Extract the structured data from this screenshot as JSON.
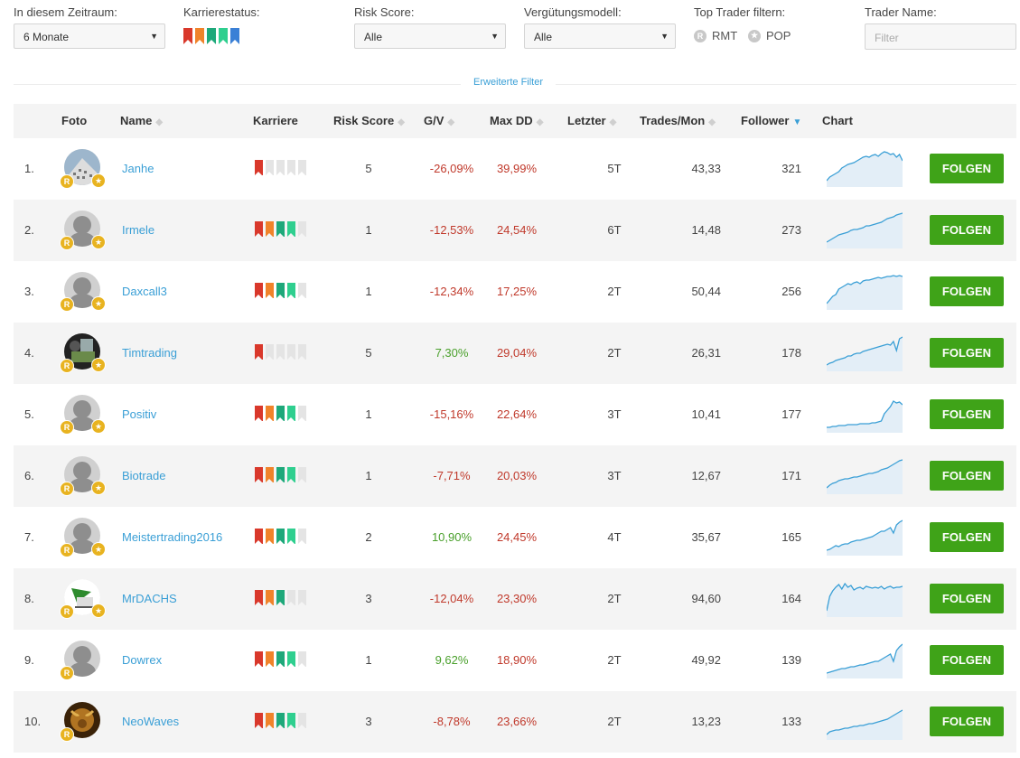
{
  "filters": {
    "zeitraum_label": "In diesem Zeitraum:",
    "zeitraum_value": "6 Monate",
    "karriere_label": "Karrierestatus:",
    "risk_label": "Risk Score:",
    "risk_value": "Alle",
    "verguetung_label": "Vergütungsmodell:",
    "verguetung_value": "Alle",
    "toptrader_label": "Top Trader filtern:",
    "rmt_label": "RMT",
    "pop_label": "POP",
    "tradername_label": "Trader Name:",
    "tradername_placeholder": "Filter",
    "erweiterte": "Erweiterte Filter"
  },
  "career_colors": [
    "#d9382b",
    "#f0832a",
    "#1ea87a",
    "#2fcf8f",
    "#3a80d6"
  ],
  "empty_flag_color": "#e4e4e4",
  "table": {
    "headers": {
      "foto": "Foto",
      "name": "Name",
      "karriere": "Karriere",
      "risk": "Risk Score",
      "gv": "G/V",
      "maxdd": "Max DD",
      "letzter": "Letzter",
      "trades": "Trades/Mon",
      "follower": "Follower",
      "chart": "Chart"
    },
    "follow_label": "FOLGEN",
    "rows": [
      {
        "rank": "1.",
        "name": "Janhe",
        "career": 1,
        "risk": "5",
        "gv": "-26,09%",
        "gv_sign": "neg",
        "maxdd": "39,99%",
        "letzter": "5T",
        "trades": "43,33",
        "follower": "321",
        "avatar": "building",
        "star": true,
        "spark": [
          4,
          8,
          10,
          12,
          14,
          18,
          20,
          22,
          23,
          24,
          26,
          28,
          30,
          31,
          30,
          32,
          33,
          31,
          34,
          36,
          35,
          33,
          34,
          30,
          33,
          26
        ]
      },
      {
        "rank": "2.",
        "name": "Irmele",
        "career": 4,
        "risk": "1",
        "gv": "-12,53%",
        "gv_sign": "neg",
        "maxdd": "24,54%",
        "letzter": "6T",
        "trades": "14,48",
        "follower": "273",
        "avatar": "person",
        "star": true,
        "spark": [
          4,
          6,
          8,
          10,
          12,
          13,
          14,
          15,
          17,
          18,
          18,
          19,
          20,
          22,
          22,
          23,
          24,
          25,
          26,
          28,
          30,
          31,
          32,
          34,
          35,
          36
        ]
      },
      {
        "rank": "3.",
        "name": "Daxcall3",
        "career": 4,
        "risk": "1",
        "gv": "-12,34%",
        "gv_sign": "neg",
        "maxdd": "17,25%",
        "letzter": "2T",
        "trades": "50,44",
        "follower": "256",
        "avatar": "person",
        "star": true,
        "spark": [
          4,
          8,
          12,
          14,
          20,
          22,
          24,
          26,
          25,
          27,
          28,
          26,
          29,
          30,
          30,
          31,
          32,
          33,
          32,
          33,
          34,
          34,
          35,
          34,
          35,
          34
        ]
      },
      {
        "rank": "4.",
        "name": "Timtrading",
        "career": 1,
        "risk": "5",
        "gv": "7,30%",
        "gv_sign": "pos",
        "maxdd": "29,04%",
        "letzter": "2T",
        "trades": "26,31",
        "follower": "178",
        "avatar": "chess",
        "star": true,
        "spark": [
          4,
          6,
          7,
          9,
          10,
          11,
          12,
          14,
          14,
          16,
          17,
          17,
          19,
          20,
          21,
          22,
          23,
          24,
          25,
          26,
          27,
          26,
          30,
          20,
          33,
          35
        ]
      },
      {
        "rank": "5.",
        "name": "Positiv",
        "career": 4,
        "risk": "1",
        "gv": "-15,16%",
        "gv_sign": "neg",
        "maxdd": "22,64%",
        "letzter": "3T",
        "trades": "10,41",
        "follower": "177",
        "avatar": "person",
        "star": true,
        "spark": [
          3,
          3,
          4,
          4,
          5,
          5,
          5,
          6,
          6,
          6,
          6,
          7,
          7,
          7,
          7,
          8,
          8,
          9,
          10,
          18,
          22,
          26,
          32,
          30,
          31,
          28
        ]
      },
      {
        "rank": "6.",
        "name": "Biotrade",
        "career": 4,
        "risk": "1",
        "gv": "-7,71%",
        "gv_sign": "neg",
        "maxdd": "20,03%",
        "letzter": "3T",
        "trades": "12,67",
        "follower": "171",
        "avatar": "person",
        "star": true,
        "spark": [
          4,
          7,
          9,
          10,
          12,
          13,
          14,
          14,
          15,
          16,
          16,
          17,
          18,
          19,
          20,
          20,
          21,
          22,
          24,
          25,
          26,
          28,
          30,
          32,
          34,
          35
        ]
      },
      {
        "rank": "7.",
        "name": "Meistertrading2016",
        "career": 4,
        "risk": "2",
        "gv": "10,90%",
        "gv_sign": "pos",
        "maxdd": "24,45%",
        "letzter": "4T",
        "trades": "35,67",
        "follower": "165",
        "avatar": "person",
        "star": true,
        "spark": [
          3,
          4,
          6,
          8,
          7,
          9,
          10,
          10,
          12,
          13,
          14,
          14,
          15,
          16,
          17,
          18,
          20,
          22,
          24,
          24,
          26,
          28,
          22,
          31,
          34,
          36
        ]
      },
      {
        "rank": "8.",
        "name": "MrDACHS",
        "career": 3,
        "risk": "3",
        "gv": "-12,04%",
        "gv_sign": "neg",
        "maxdd": "23,30%",
        "letzter": "2T",
        "trades": "94,60",
        "follower": "164",
        "avatar": "flag",
        "star": true,
        "spark": [
          4,
          20,
          26,
          30,
          33,
          28,
          34,
          30,
          32,
          27,
          29,
          30,
          28,
          31,
          30,
          29,
          30,
          29,
          31,
          28,
          30,
          31,
          29,
          30,
          30,
          31
        ]
      },
      {
        "rank": "9.",
        "name": "Dowrex",
        "career": 4,
        "risk": "1",
        "gv": "9,62%",
        "gv_sign": "pos",
        "maxdd": "18,90%",
        "letzter": "2T",
        "trades": "49,92",
        "follower": "139",
        "avatar": "person",
        "star": false,
        "spark": [
          3,
          4,
          5,
          6,
          7,
          8,
          8,
          9,
          10,
          10,
          11,
          12,
          12,
          13,
          14,
          15,
          16,
          16,
          18,
          20,
          22,
          24,
          16,
          28,
          32,
          35
        ]
      },
      {
        "rank": "10.",
        "name": "NeoWaves",
        "career": 4,
        "risk": "3",
        "gv": "-8,78%",
        "gv_sign": "neg",
        "maxdd": "23,66%",
        "letzter": "2T",
        "trades": "13,23",
        "follower": "133",
        "avatar": "bull",
        "star": false,
        "spark": [
          3,
          6,
          7,
          8,
          8,
          9,
          10,
          10,
          11,
          12,
          12,
          13,
          13,
          14,
          15,
          15,
          16,
          17,
          18,
          19,
          20,
          22,
          24,
          26,
          28,
          30
        ]
      }
    ]
  }
}
